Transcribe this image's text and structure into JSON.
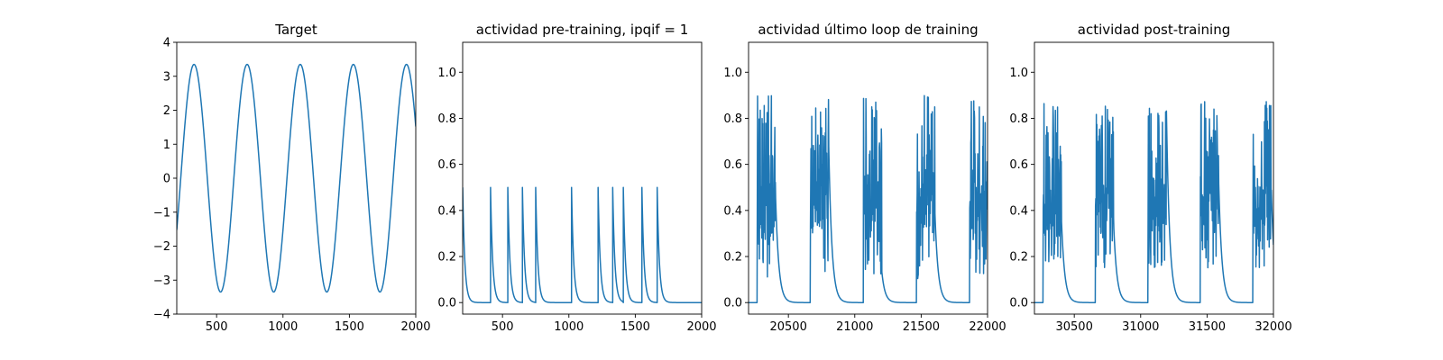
{
  "figure": {
    "background": "#ffffff",
    "line_color": "#1f77b4"
  },
  "chart_data": [
    {
      "type": "line",
      "title": "Target",
      "xlim": [
        200,
        2000
      ],
      "ylim": [
        -4,
        4
      ],
      "xticks": [
        500,
        1000,
        1500,
        2000
      ],
      "yticks": [
        -4,
        -3,
        -2,
        -1,
        0,
        1,
        2,
        3,
        4
      ],
      "ytick_labels": [
        "−4",
        "−3",
        "−2",
        "−1",
        "0",
        "1",
        "2",
        "3",
        "4"
      ],
      "series": [
        {
          "form": "sine",
          "amplitude": 3.35,
          "period": 400,
          "peak_x": 330,
          "x_start": 200,
          "x_end": 2000
        }
      ]
    },
    {
      "type": "line",
      "title": "actividad pre-training, ipqif = 1",
      "xlim": [
        200,
        2000
      ],
      "ylim": [
        -0.05,
        1.13
      ],
      "xticks": [
        500,
        1000,
        1500,
        2000
      ],
      "yticks": [
        0.0,
        0.2,
        0.4,
        0.6,
        0.8,
        1.0
      ],
      "ytick_labels": [
        "0.0",
        "0.2",
        "0.4",
        "0.6",
        "0.8",
        "1.0"
      ],
      "series": [
        {
          "form": "decaying_pulses",
          "peak": 0.5,
          "decay_tau": 16,
          "initial_value": 0.5,
          "pulse_x": [
            410,
            540,
            650,
            750,
            1020,
            1220,
            1330,
            1410,
            1550,
            1665
          ],
          "x_start": 200,
          "x_end": 2000
        }
      ]
    },
    {
      "type": "line",
      "title": "actividad último loop de training",
      "xlim": [
        20200,
        22000
      ],
      "ylim": [
        -0.05,
        1.13
      ],
      "xticks": [
        20500,
        21000,
        21500,
        22000
      ],
      "yticks": [
        0.0,
        0.2,
        0.4,
        0.6,
        0.8,
        1.0
      ],
      "ytick_labels": [
        "0.0",
        "0.2",
        "0.4",
        "0.6",
        "0.8",
        "1.0"
      ],
      "series": [
        {
          "form": "oscillating_bursts",
          "burst_period": 400,
          "first_burst_x": 20265,
          "burst_length": 140,
          "burst_max": 0.9,
          "burst_min": 0.1,
          "decay_tau": 24,
          "x_start": 20200,
          "x_end": 22000
        }
      ]
    },
    {
      "type": "line",
      "title": "actividad post-training",
      "xlim": [
        30200,
        32000
      ],
      "ylim": [
        -0.05,
        1.13
      ],
      "xticks": [
        30500,
        31000,
        31500,
        32000
      ],
      "yticks": [
        0.0,
        0.2,
        0.4,
        0.6,
        0.8,
        1.0
      ],
      "ytick_labels": [
        "0.0",
        "0.2",
        "0.4",
        "0.6",
        "0.8",
        "1.0"
      ],
      "series": [
        {
          "form": "oscillating_bursts",
          "burst_period": 395,
          "first_burst_x": 30265,
          "burst_length": 140,
          "burst_max": 0.88,
          "burst_min": 0.15,
          "decay_tau": 24,
          "x_start": 30200,
          "x_end": 32000
        }
      ]
    }
  ]
}
